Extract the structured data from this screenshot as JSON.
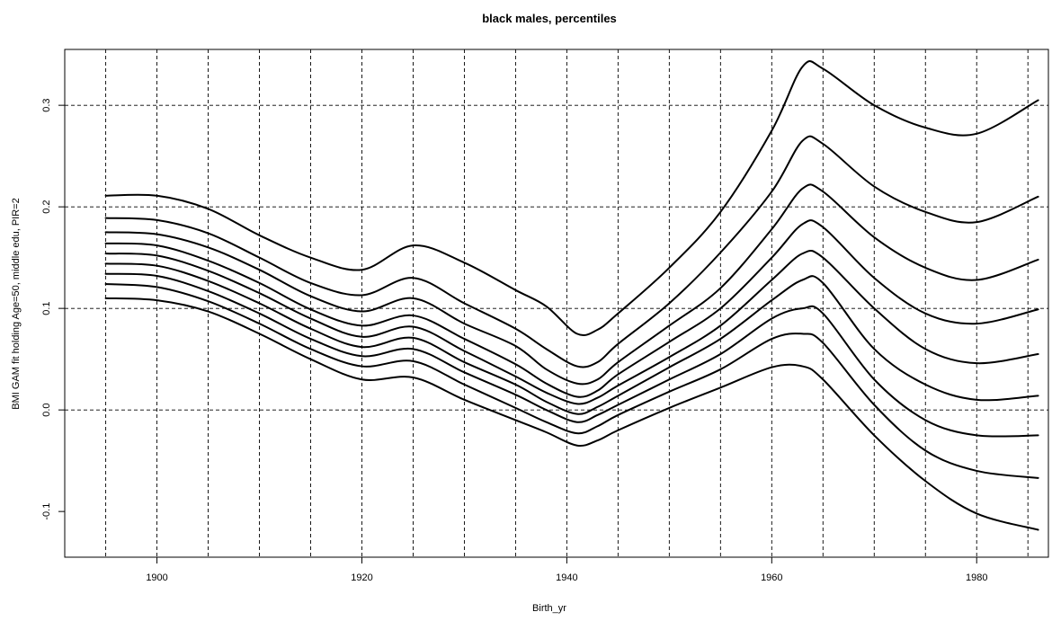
{
  "chart_data": {
    "type": "line",
    "title": "black males, percentiles",
    "xlabel": "Birth_yr",
    "ylabel": "BMI GAM fit holding Age=50, middle edu, PIR=2",
    "xlim": [
      1891,
      1987
    ],
    "ylim": [
      -0.145,
      0.355
    ],
    "x_ticks": [
      1900,
      1920,
      1940,
      1960,
      1980
    ],
    "x_tick_labels": [
      "1900",
      "1920",
      "1940",
      "1960",
      "1980"
    ],
    "y_ticks": [
      -0.1,
      0.0,
      0.1,
      0.2,
      0.3
    ],
    "y_tick_labels": [
      "-0.1",
      "0.0",
      "0.1",
      "0.2",
      "0.3"
    ],
    "grid": true,
    "grid_x": [
      1895,
      1900,
      1905,
      1910,
      1915,
      1920,
      1925,
      1930,
      1935,
      1940,
      1945,
      1950,
      1955,
      1960,
      1965,
      1970,
      1975,
      1980,
      1985
    ],
    "grid_y": [
      0.0,
      0.1,
      0.2,
      0.3
    ],
    "x": [
      1895,
      1900,
      1905,
      1910,
      1915,
      1920,
      1925,
      1930,
      1935,
      1938,
      1941,
      1943,
      1945,
      1950,
      1955,
      1960,
      1963,
      1965,
      1970,
      1975,
      1980,
      1986
    ],
    "series": [
      {
        "values": [
          0.11,
          0.108,
          0.097,
          0.075,
          0.05,
          0.03,
          0.032,
          0.01,
          -0.01,
          -0.022,
          -0.035,
          -0.03,
          -0.02,
          0.002,
          0.022,
          0.042,
          0.043,
          0.03,
          -0.025,
          -0.07,
          -0.102,
          -0.118
        ]
      },
      {
        "values": [
          0.124,
          0.121,
          0.107,
          0.085,
          0.06,
          0.043,
          0.048,
          0.025,
          0.002,
          -0.012,
          -0.023,
          -0.016,
          -0.005,
          0.018,
          0.04,
          0.07,
          0.075,
          0.066,
          0.005,
          -0.04,
          -0.06,
          -0.067
        ]
      },
      {
        "values": [
          0.134,
          0.132,
          0.117,
          0.095,
          0.07,
          0.053,
          0.06,
          0.037,
          0.015,
          0.0,
          -0.012,
          -0.005,
          0.005,
          0.03,
          0.055,
          0.09,
          0.1,
          0.095,
          0.03,
          -0.01,
          -0.025,
          -0.025
        ]
      },
      {
        "values": [
          0.144,
          0.142,
          0.127,
          0.105,
          0.08,
          0.062,
          0.071,
          0.047,
          0.025,
          0.008,
          -0.004,
          0.003,
          0.014,
          0.042,
          0.07,
          0.108,
          0.128,
          0.125,
          0.06,
          0.025,
          0.01,
          0.014
        ]
      },
      {
        "values": [
          0.154,
          0.152,
          0.137,
          0.115,
          0.09,
          0.072,
          0.082,
          0.058,
          0.033,
          0.017,
          0.006,
          0.012,
          0.024,
          0.052,
          0.083,
          0.128,
          0.154,
          0.15,
          0.1,
          0.06,
          0.046,
          0.055
        ]
      },
      {
        "values": [
          0.164,
          0.162,
          0.147,
          0.125,
          0.099,
          0.083,
          0.093,
          0.07,
          0.045,
          0.026,
          0.013,
          0.019,
          0.035,
          0.067,
          0.1,
          0.15,
          0.183,
          0.18,
          0.13,
          0.095,
          0.085,
          0.099
        ]
      },
      {
        "values": [
          0.175,
          0.173,
          0.16,
          0.138,
          0.112,
          0.097,
          0.11,
          0.085,
          0.063,
          0.04,
          0.026,
          0.03,
          0.047,
          0.083,
          0.12,
          0.178,
          0.218,
          0.215,
          0.17,
          0.14,
          0.128,
          0.148
        ]
      },
      {
        "values": [
          0.189,
          0.187,
          0.174,
          0.15,
          0.125,
          0.113,
          0.13,
          0.105,
          0.08,
          0.06,
          0.043,
          0.047,
          0.065,
          0.105,
          0.155,
          0.215,
          0.265,
          0.262,
          0.22,
          0.195,
          0.185,
          0.21
        ]
      },
      {
        "values": [
          0.211,
          0.211,
          0.198,
          0.172,
          0.15,
          0.138,
          0.162,
          0.145,
          0.118,
          0.102,
          0.075,
          0.079,
          0.095,
          0.14,
          0.195,
          0.275,
          0.338,
          0.336,
          0.3,
          0.278,
          0.272,
          0.305
        ]
      }
    ]
  }
}
